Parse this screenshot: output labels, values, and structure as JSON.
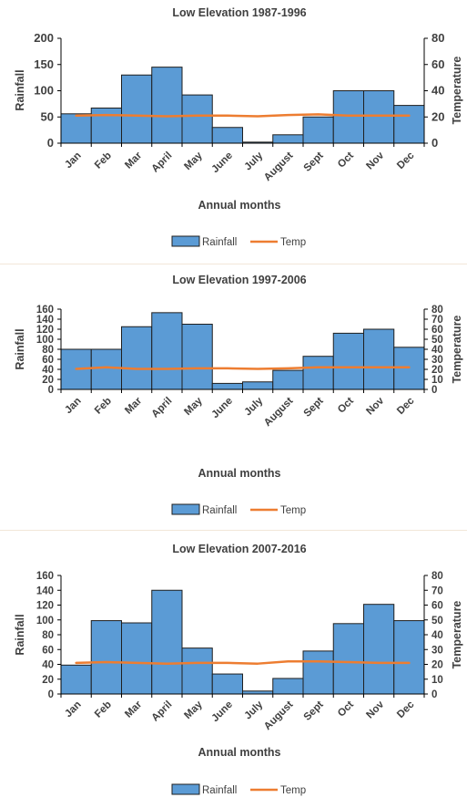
{
  "colors": {
    "bar_fill": "#5b9bd5",
    "bar_stroke": "#1f1f1f",
    "line": "#ed7d31",
    "axis": "#000000",
    "text": "#404040",
    "separator": "#f2e7d9"
  },
  "chart_data": [
    {
      "type": "bar",
      "title": "Low Elevation 1987-1996",
      "xlabel": "Annual months",
      "ylabel": "Rainfall",
      "y2label": "Temperature",
      "categories": [
        "Jan",
        "Feb",
        "Mar",
        "April",
        "May",
        "June",
        "July",
        "August",
        "Sept",
        "Oct",
        "Nov",
        "Dec"
      ],
      "ylim": [
        0,
        200
      ],
      "yticks": [
        0,
        50,
        100,
        150,
        200
      ],
      "y2lim": [
        0,
        80
      ],
      "y2ticks": [
        0,
        20,
        40,
        60,
        80
      ],
      "legend": [
        "Rainfall",
        "Temp"
      ],
      "legend_position": "bottom",
      "series": [
        {
          "name": "Rainfall",
          "kind": "bar",
          "axis": "left",
          "values": [
            56,
            67,
            130,
            145,
            92,
            30,
            2,
            16,
            50,
            100,
            100,
            72
          ]
        },
        {
          "name": "Temp",
          "kind": "line",
          "axis": "right",
          "values": [
            21,
            21.5,
            21,
            20.5,
            21,
            21,
            20.5,
            21.5,
            22,
            21,
            21,
            21
          ]
        }
      ]
    },
    {
      "type": "bar",
      "title": "Low Elevation 1997-2006",
      "xlabel": "Annual months",
      "ylabel": "Rainfall",
      "y2label": "Temperature",
      "categories": [
        "Jan",
        "Feb",
        "Mar",
        "April",
        "May",
        "June",
        "July",
        "August",
        "Sept",
        "Oct",
        "Nov",
        "Dec"
      ],
      "ylim": [
        0,
        160
      ],
      "yticks": [
        0,
        20,
        40,
        60,
        80,
        100,
        120,
        140,
        160
      ],
      "y2lim": [
        0,
        80
      ],
      "y2ticks": [
        0,
        10,
        20,
        30,
        40,
        50,
        60,
        70,
        80
      ],
      "legend": [
        "Rainfall",
        "Temp"
      ],
      "legend_position": "bottom",
      "series": [
        {
          "name": "Rainfall",
          "kind": "bar",
          "axis": "left",
          "values": [
            80,
            80,
            125,
            153,
            130,
            12,
            15,
            38,
            66,
            112,
            120,
            84
          ]
        },
        {
          "name": "Temp",
          "kind": "line",
          "axis": "right",
          "values": [
            20.5,
            22,
            20.5,
            20.5,
            21,
            21,
            20.5,
            21,
            22,
            22,
            22,
            22
          ]
        }
      ]
    },
    {
      "type": "bar",
      "title": "Low Elevation 2007-2016",
      "xlabel": "Annual months",
      "ylabel": "Rainfall",
      "y2label": "Temperature",
      "categories": [
        "Jan",
        "Feb",
        "Mar",
        "April",
        "May",
        "June",
        "July",
        "August",
        "Sept",
        "Oct",
        "Nov",
        "Dec"
      ],
      "ylim": [
        0,
        160
      ],
      "yticks": [
        0,
        20,
        40,
        60,
        80,
        100,
        120,
        140,
        160
      ],
      "y2lim": [
        0,
        80
      ],
      "y2ticks": [
        0,
        10,
        20,
        30,
        40,
        50,
        60,
        70,
        80
      ],
      "legend": [
        "Rainfall",
        "Temp"
      ],
      "legend_position": "bottom",
      "series": [
        {
          "name": "Rainfall",
          "kind": "bar",
          "axis": "left",
          "values": [
            39,
            99,
            96,
            140,
            62,
            27,
            4,
            21,
            58,
            95,
            121,
            99
          ]
        },
        {
          "name": "Temp",
          "kind": "line",
          "axis": "right",
          "values": [
            21,
            21.5,
            21,
            20.5,
            21,
            21,
            20.5,
            22,
            22,
            21.5,
            21,
            21
          ]
        }
      ]
    }
  ]
}
